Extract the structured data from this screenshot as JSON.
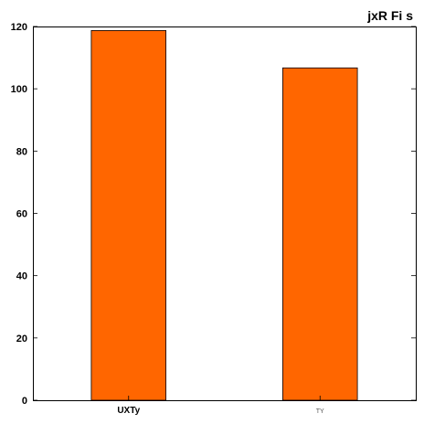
{
  "chart_data": {
    "type": "bar",
    "title": "jxR Fi  s",
    "xlabel": "",
    "ylabel": "",
    "categories": [
      "UXTy",
      "TY"
    ],
    "values": [
      118.7,
      106.7
    ],
    "ylim": [
      0,
      120
    ],
    "yticks": [
      0,
      20,
      40,
      60,
      80,
      100,
      120
    ],
    "grid": false,
    "legend": "none",
    "bar_color": "#ff6600",
    "bar_edge_color": "#000000"
  }
}
